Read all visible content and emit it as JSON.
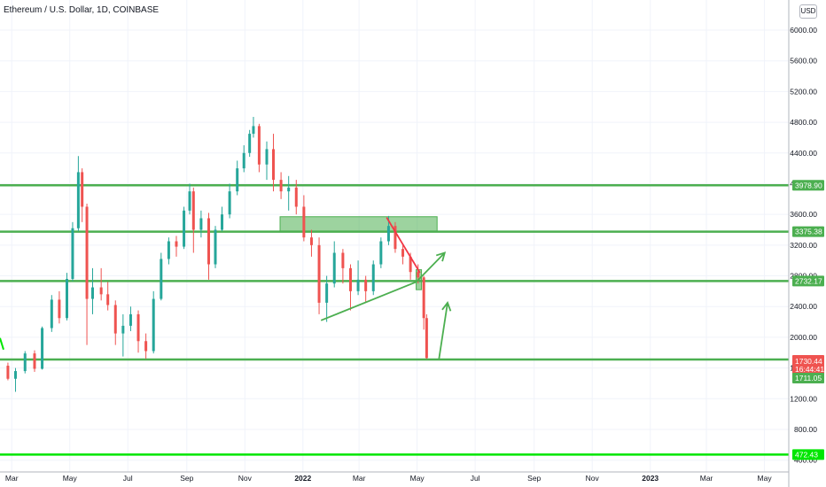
{
  "header": {
    "title": "Ethereum / U.S. Dollar, 1D, COINBASE",
    "currency": "USD"
  },
  "chart_data": {
    "type": "candlestick",
    "price_ticks": [
      "6000.00",
      "5600.00",
      "5200.00",
      "4800.00",
      "4400.00",
      "4000.00",
      "3600.00",
      "3200.00",
      "2800.00",
      "2400.00",
      "2000.00",
      "1600.00",
      "1200.00",
      "800.00",
      "400.00"
    ],
    "time_labels": [
      "Mar",
      "May",
      "Jul",
      "Sep",
      "Nov",
      "2022",
      "Mar",
      "May",
      "Jul",
      "Sep",
      "Nov",
      "2023",
      "Mar",
      "May"
    ],
    "horizontal_levels": [
      {
        "label": "3978.90",
        "value": 3978.9
      },
      {
        "label": "3375.38",
        "value": 3375.38
      },
      {
        "label": "2732.17",
        "value": 2732.17
      },
      {
        "label": "1711.05",
        "value": 1711.05
      },
      {
        "label": "472.43",
        "value": 472.43
      }
    ],
    "current_price": {
      "label": "1730.44",
      "countdown": "16:44:41"
    },
    "colors": {
      "up": "#26a69a",
      "down": "#ef5350",
      "levels": "#4caf50",
      "bright_level": "#00e600",
      "trend_red": "#f23645",
      "zone": "#4caf50"
    },
    "candles": [
      [
        "2021-02-25",
        1630,
        1670,
        1440,
        1460
      ],
      [
        "2021-03-05",
        1460,
        1600,
        1290,
        1560
      ],
      [
        "2021-03-15",
        1560,
        1820,
        1530,
        1790
      ],
      [
        "2021-03-25",
        1790,
        1830,
        1550,
        1590
      ],
      [
        "2021-04-02",
        1590,
        2140,
        1580,
        2120
      ],
      [
        "2021-04-12",
        2120,
        2550,
        2070,
        2490
      ],
      [
        "2021-04-20",
        2490,
        2600,
        2180,
        2250
      ],
      [
        "2021-04-28",
        2250,
        2840,
        2220,
        2760
      ],
      [
        "2021-05-04",
        2760,
        3500,
        2730,
        3420
      ],
      [
        "2021-05-10",
        3420,
        4360,
        3380,
        4150
      ],
      [
        "2021-05-14",
        4150,
        4200,
        3500,
        3700
      ],
      [
        "2021-05-19",
        3700,
        3740,
        1900,
        2500
      ],
      [
        "2021-05-25",
        2500,
        2900,
        2300,
        2650
      ],
      [
        "2021-06-03",
        2650,
        2900,
        2480,
        2560
      ],
      [
        "2021-06-10",
        2560,
        2720,
        2350,
        2420
      ],
      [
        "2021-06-18",
        2420,
        2480,
        1900,
        2050
      ],
      [
        "2021-06-26",
        2050,
        2300,
        1750,
        2150
      ],
      [
        "2021-07-04",
        2150,
        2400,
        2080,
        2300
      ],
      [
        "2021-07-12",
        2300,
        2350,
        1800,
        1950
      ],
      [
        "2021-07-20",
        1950,
        2050,
        1720,
        1820
      ],
      [
        "2021-07-28",
        1820,
        2600,
        1790,
        2500
      ],
      [
        "2021-08-05",
        2500,
        3100,
        2480,
        3020
      ],
      [
        "2021-08-13",
        3020,
        3300,
        2950,
        3250
      ],
      [
        "2021-08-21",
        3250,
        3320,
        3050,
        3180
      ],
      [
        "2021-08-29",
        3180,
        3700,
        3150,
        3650
      ],
      [
        "2021-09-04",
        3650,
        4000,
        3600,
        3900
      ],
      [
        "2021-09-08",
        3900,
        3950,
        3100,
        3400
      ],
      [
        "2021-09-16",
        3400,
        3650,
        3300,
        3550
      ],
      [
        "2021-09-24",
        3550,
        3620,
        2750,
        2950
      ],
      [
        "2021-10-01",
        2950,
        3450,
        2900,
        3400
      ],
      [
        "2021-10-08",
        3400,
        3700,
        3380,
        3600
      ],
      [
        "2021-10-16",
        3600,
        4000,
        3550,
        3900
      ],
      [
        "2021-10-24",
        3900,
        4300,
        3850,
        4200
      ],
      [
        "2021-10-31",
        4200,
        4500,
        4150,
        4400
      ],
      [
        "2021-11-06",
        4400,
        4700,
        4350,
        4650
      ],
      [
        "2021-11-10",
        4650,
        4870,
        4600,
        4750
      ],
      [
        "2021-11-16",
        4750,
        4780,
        4150,
        4250
      ],
      [
        "2021-11-24",
        4250,
        4550,
        4050,
        4450
      ],
      [
        "2021-12-01",
        4450,
        4650,
        3900,
        4050
      ],
      [
        "2021-12-09",
        4050,
        4150,
        3800,
        3900
      ],
      [
        "2021-12-17",
        3900,
        4100,
        3650,
        3950
      ],
      [
        "2021-12-25",
        3950,
        4050,
        3600,
        3700
      ],
      [
        "2022-01-02",
        3700,
        3850,
        3250,
        3300
      ],
      [
        "2022-01-10",
        3300,
        3400,
        3050,
        3200
      ],
      [
        "2022-01-18",
        3200,
        3300,
        2300,
        2450
      ],
      [
        "2022-01-26",
        2450,
        2800,
        2200,
        2700
      ],
      [
        "2022-02-03",
        2700,
        3250,
        2650,
        3100
      ],
      [
        "2022-02-12",
        3100,
        3150,
        2700,
        2900
      ],
      [
        "2022-02-20",
        2900,
        2950,
        2350,
        2600
      ],
      [
        "2022-02-28",
        2600,
        3000,
        2550,
        2750
      ],
      [
        "2022-03-08",
        2750,
        2800,
        2450,
        2600
      ],
      [
        "2022-03-16",
        2600,
        3000,
        2550,
        2950
      ],
      [
        "2022-03-24",
        2950,
        3300,
        2900,
        3250
      ],
      [
        "2022-04-01",
        3250,
        3580,
        3200,
        3450
      ],
      [
        "2022-04-08",
        3450,
        3500,
        3100,
        3150
      ],
      [
        "2022-04-16",
        3150,
        3200,
        2950,
        3050
      ],
      [
        "2022-04-24",
        3050,
        3100,
        2750,
        2850
      ],
      [
        "2022-05-02",
        2850,
        2950,
        2700,
        2780
      ],
      [
        "2022-05-08",
        2780,
        2800,
        2100,
        2250
      ],
      [
        "2022-05-11",
        2250,
        2300,
        1720,
        1730
      ]
    ],
    "annotations": {
      "rect": {
        "from": "2021-12-08",
        "to": "2022-05-22",
        "top": 3570,
        "bottom": 3380
      },
      "small_rect": {
        "from": "2022-04-30",
        "to": "2022-05-03",
        "top": 2880,
        "bottom": 2620
      },
      "green_support": {
        "from": [
          "2022-01-20",
          2220
        ],
        "to": [
          "2022-04-30",
          2720
        ]
      },
      "green_arrow_up": {
        "from": [
          "2022-04-30",
          2720
        ],
        "to": [
          "2022-05-30",
          3100
        ]
      },
      "red_downtrend": {
        "from": [
          "2022-03-30",
          3560
        ],
        "to": [
          "2022-05-04",
          2840
        ]
      },
      "projection_arrow": {
        "from": [
          "2022-05-24",
          1720
        ],
        "to": [
          "2022-06-02",
          2450
        ]
      }
    }
  }
}
